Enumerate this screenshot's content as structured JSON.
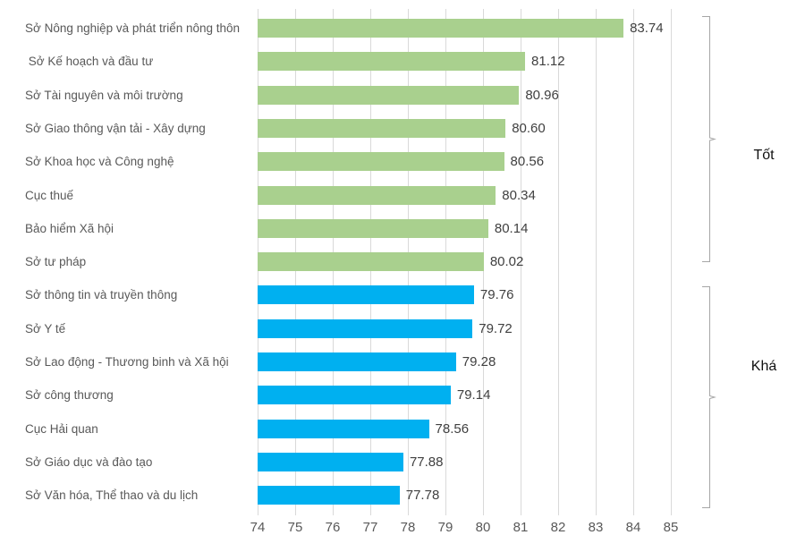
{
  "chart_data": {
    "type": "bar",
    "orientation": "horizontal",
    "title": "",
    "categories": [
      "Sở Nông nghiệp và phát triển nông thôn",
      " Sở Kế hoạch và đầu tư",
      "Sở Tài nguyên và môi trường",
      "Sở Giao thông vận tải - Xây dựng",
      "Sở Khoa học và Công nghệ",
      "Cục thuế",
      "Bảo hiểm Xã hội",
      "Sở tư pháp",
      "Sở thông tin và truyền thông",
      "Sở Y tế",
      "Sở Lao động - Thương binh và Xã hội",
      "Sở công thương",
      "Cục Hải quan",
      "Sở Giáo dục và đào tạo",
      "Sở Văn hóa, Thể thao và du lịch"
    ],
    "values": [
      83.74,
      81.12,
      80.96,
      80.6,
      80.56,
      80.34,
      80.14,
      80.02,
      79.76,
      79.72,
      79.28,
      79.14,
      78.56,
      77.88,
      77.78
    ],
    "value_labels": [
      "83.74",
      "81.12",
      "80.96",
      "80.60",
      "80.56",
      "80.34",
      "80.14",
      "80.02",
      "79.76",
      "79.72",
      "79.28",
      "79.14",
      "78.56",
      "77.88",
      "77.78"
    ],
    "groups": [
      {
        "name": "Tốt",
        "color": "#a9d08e",
        "from": 0,
        "to": 7
      },
      {
        "name": "Khá",
        "color": "#00b0f0",
        "from": 8,
        "to": 14
      }
    ],
    "x_ticks": [
      "74",
      "75",
      "76",
      "77",
      "78",
      "79",
      "80",
      "81",
      "82",
      "83",
      "84",
      "85"
    ],
    "xlim": [
      74,
      85.5
    ],
    "grid": true,
    "legend": "none",
    "colors": {
      "good_bar": "#a9d08e",
      "fair_bar": "#00b0f0",
      "gridline": "#d9d9d9",
      "category_text": "#595959",
      "value_text": "#404040",
      "tick_text": "#595959",
      "bracket": "#a6a6a6",
      "annotation_text": "#111111"
    }
  }
}
